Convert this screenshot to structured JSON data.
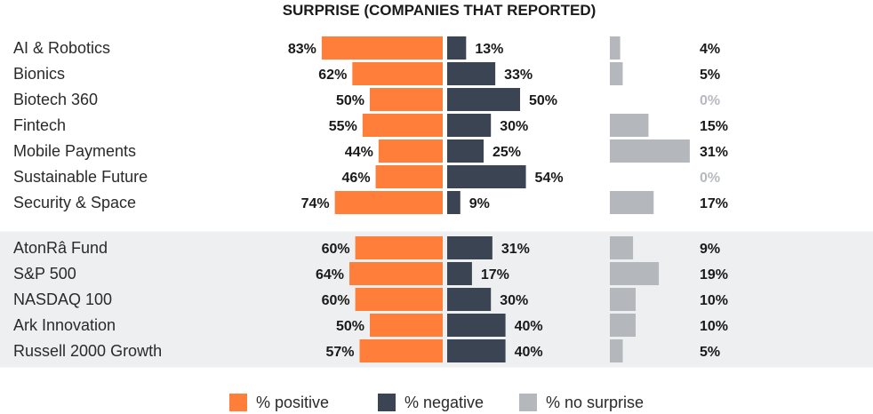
{
  "chart_data": {
    "type": "bar",
    "title": "SURPRISE (COMPANIES THAT REPORTED)",
    "groups": [
      {
        "shaded": false,
        "categories": [
          "AI & Robotics",
          "Bionics",
          "Biotech 360",
          "Fintech",
          "Mobile Payments",
          "Sustainable Future",
          "Security & Space"
        ],
        "positive": [
          83,
          62,
          50,
          55,
          44,
          46,
          74
        ],
        "negative": [
          13,
          33,
          50,
          30,
          25,
          54,
          9
        ],
        "no_surprise": [
          4,
          5,
          0,
          15,
          31,
          0,
          17
        ]
      },
      {
        "shaded": true,
        "categories": [
          "AtonRâ Fund",
          "S&P 500",
          "NASDAQ 100",
          "Ark Innovation",
          "Russell 2000 Growth"
        ],
        "positive": [
          60,
          64,
          60,
          50,
          57
        ],
        "negative": [
          31,
          17,
          30,
          40,
          40
        ],
        "no_surprise": [
          9,
          19,
          10,
          10,
          5
        ]
      }
    ],
    "series": [
      {
        "key": "positive",
        "name": "% positive",
        "color": "#FF7F3A"
      },
      {
        "key": "negative",
        "name": "% negative",
        "color": "#3B4452"
      },
      {
        "key": "no_surprise",
        "name": "% no surprise",
        "color": "#B4B8BD"
      }
    ],
    "unit": "%",
    "muted_color": "#B7BBC0",
    "shade_color": "#EEEFF0",
    "legend_position": "bottom-center"
  }
}
